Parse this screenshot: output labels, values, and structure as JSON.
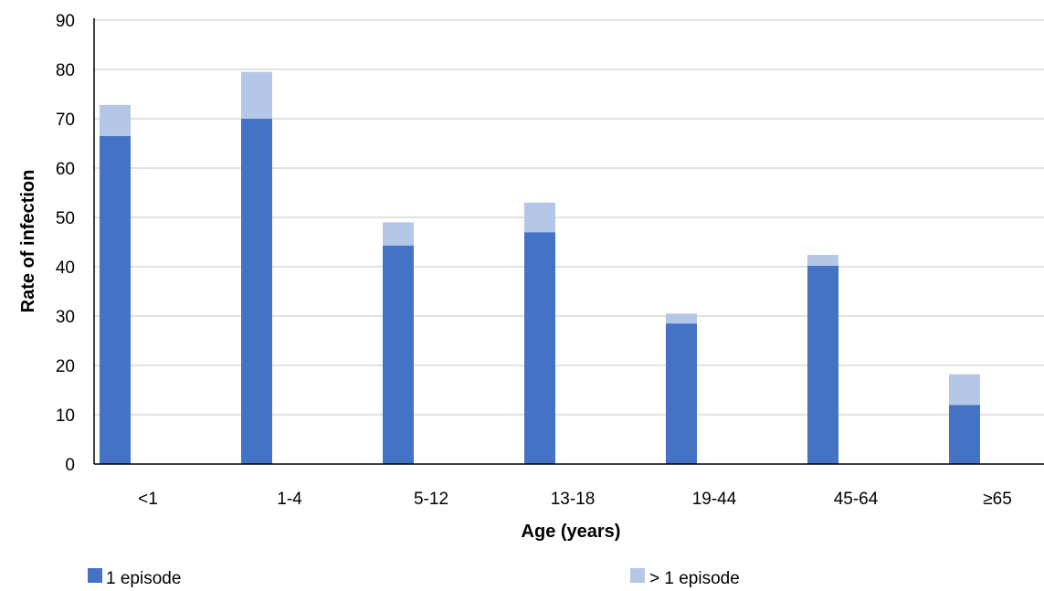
{
  "chart_data": {
    "type": "bar",
    "stacked": true,
    "categories": [
      "<1",
      "1-4",
      "5-12",
      "13-18",
      "19-44",
      "45-64",
      "≥65"
    ],
    "series": [
      {
        "name": "1 episode",
        "values": [
          66.5,
          70,
          44.3,
          47,
          28.5,
          40.2,
          12
        ],
        "color": "#4472c4"
      },
      {
        "name": "> 1 episode",
        "values": [
          6.3,
          9.5,
          4.7,
          6,
          2,
          2.2,
          6.2
        ],
        "color": "#b4c7e7"
      }
    ],
    "xlabel": "Age (years)",
    "ylabel": "Rate of infection",
    "ylim": [
      0,
      90
    ],
    "yticks": [
      0,
      10,
      20,
      30,
      40,
      50,
      60,
      70,
      80,
      90
    ],
    "grid": true,
    "legend_position": "bottom",
    "gridline_color": "#d9d9d9"
  }
}
